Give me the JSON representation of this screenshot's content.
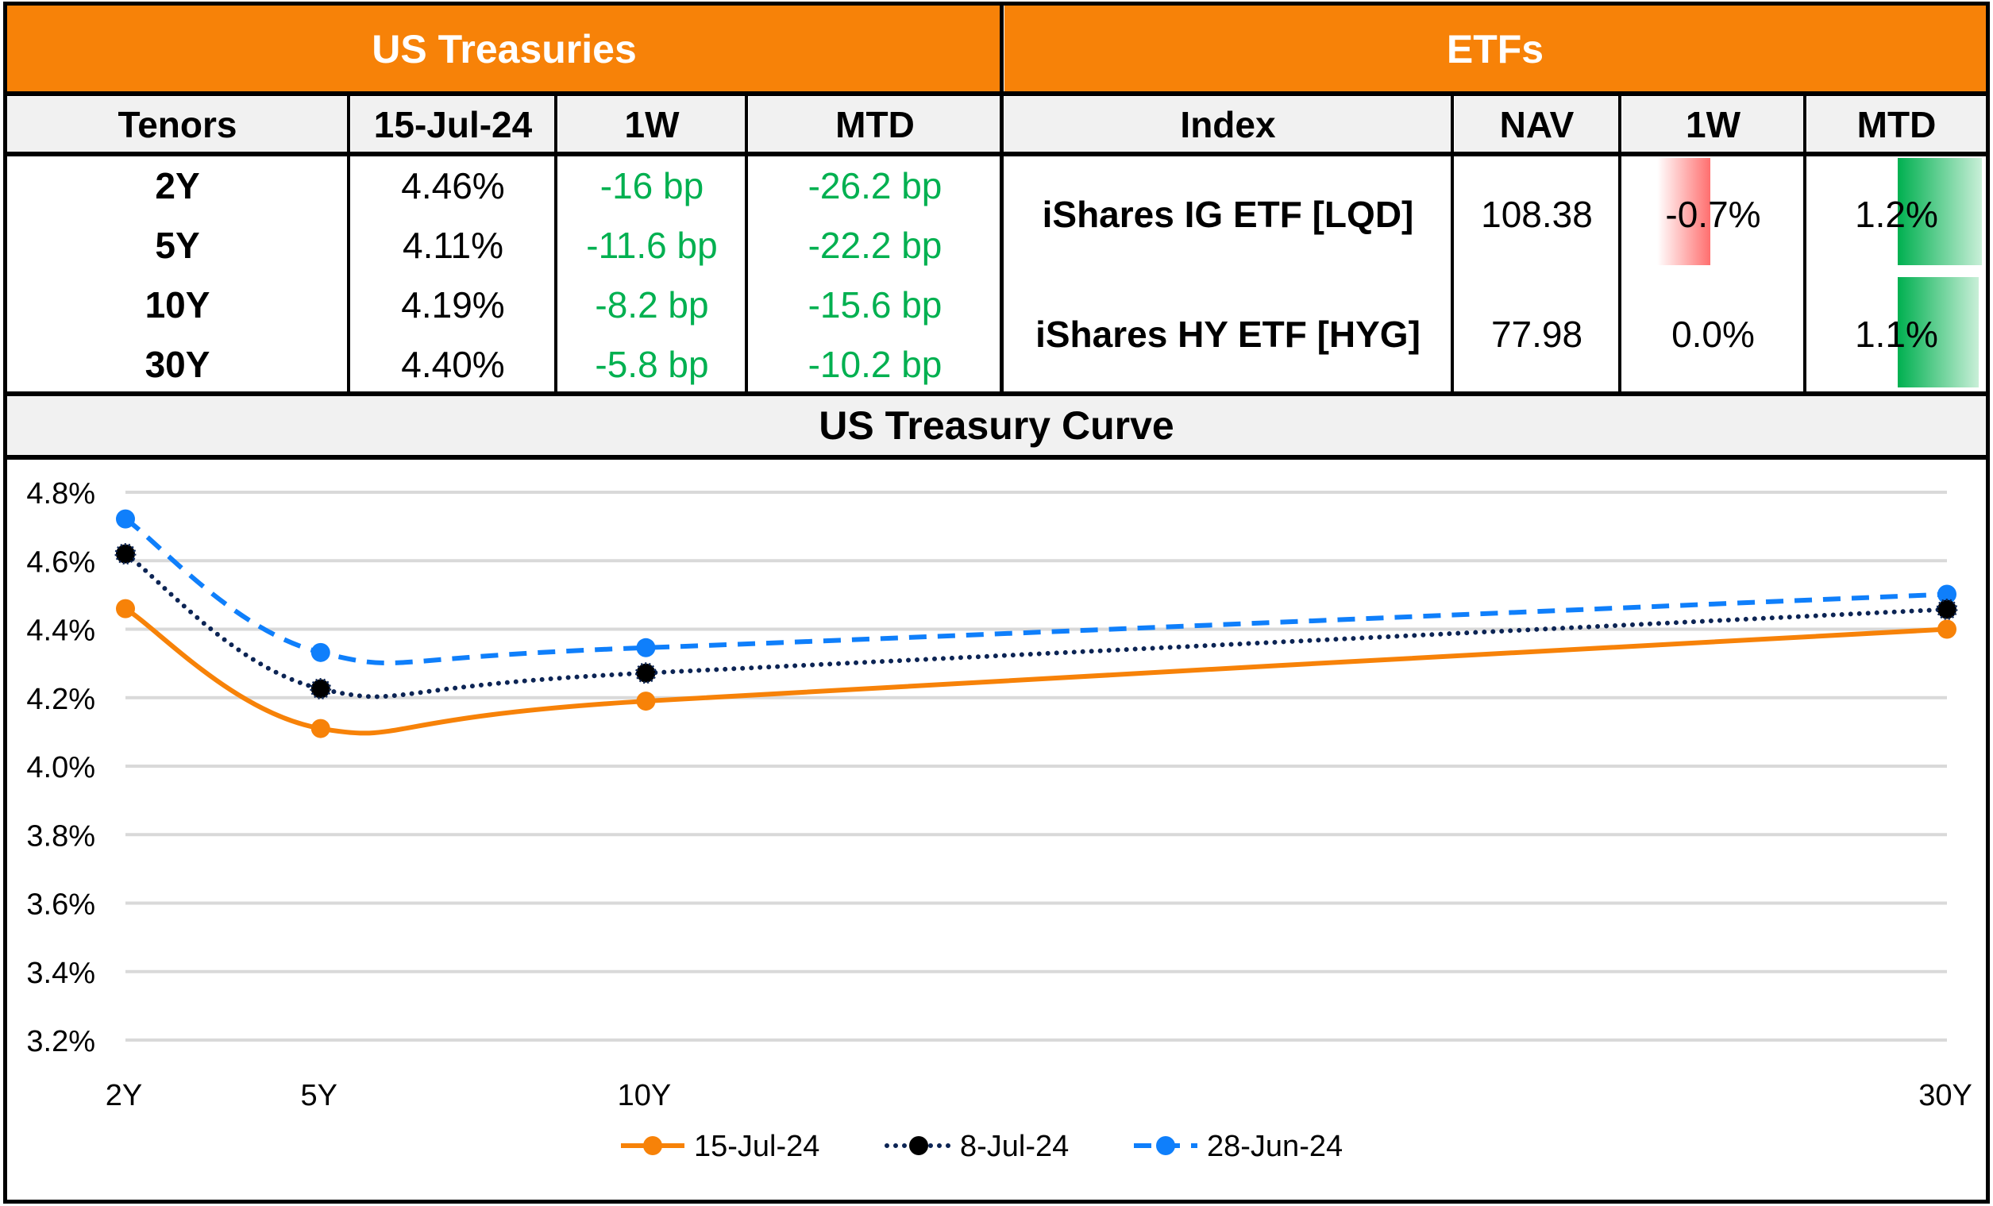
{
  "treasuries": {
    "title": "US Treasuries",
    "headers": [
      "Tenors",
      "15-Jul-24",
      "1W",
      "MTD"
    ],
    "rows": [
      {
        "tenor": "2Y",
        "yield": "4.46%",
        "w1": "-16 bp",
        "mtd": "-26.2 bp"
      },
      {
        "tenor": "5Y",
        "yield": "4.11%",
        "w1": "-11.6 bp",
        "mtd": "-22.2 bp"
      },
      {
        "tenor": "10Y",
        "yield": "4.19%",
        "w1": "-8.2 bp",
        "mtd": "-15.6 bp"
      },
      {
        "tenor": "30Y",
        "yield": "4.40%",
        "w1": "-5.8 bp",
        "mtd": "-10.2 bp"
      }
    ]
  },
  "etfs": {
    "title": "ETFs",
    "headers": [
      "Index",
      "NAV",
      "1W",
      "MTD"
    ],
    "rows": [
      {
        "name": "iShares IG ETF [LQD]",
        "nav": "108.38",
        "w1": "-0.7%",
        "mtd": "1.2%",
        "w1_value": -0.7,
        "mtd_value": 1.2
      },
      {
        "name": "iShares HY ETF [HYG]",
        "nav": "77.98",
        "w1": "0.0%",
        "mtd": "1.1%",
        "w1_value": 0.0,
        "mtd_value": 1.1
      }
    ],
    "colors": {
      "positive_bar": "#00b050",
      "negative_bar": "#ff6f6f"
    }
  },
  "colors": {
    "header_orange": "#f78208",
    "header_grey": "#f1f1f1",
    "change_green": "#00b050"
  },
  "chart_data": {
    "type": "line",
    "title": "US Treasury Curve",
    "xlabel": "",
    "ylabel": "",
    "x": [
      2,
      5,
      10,
      30
    ],
    "x_tick_labels": [
      "2Y",
      "5Y",
      "10Y",
      "30Y"
    ],
    "xlim": [
      2,
      30
    ],
    "ylim": [
      3.2,
      4.8
    ],
    "y_ticks": [
      3.2,
      3.4,
      3.6,
      3.8,
      4.0,
      4.2,
      4.4,
      4.6,
      4.8
    ],
    "y_tick_labels": [
      "3.2%",
      "3.4%",
      "3.6%",
      "3.8%",
      "4.0%",
      "4.2%",
      "4.4%",
      "4.6%",
      "4.8%"
    ],
    "grid": true,
    "legend_position": "bottom",
    "series": [
      {
        "name": "15-Jul-24",
        "values": [
          4.46,
          4.11,
          4.19,
          4.4
        ],
        "color": "#f78208",
        "style": "solid",
        "marker_color": "#f78208"
      },
      {
        "name": "8-Jul-24",
        "values": [
          4.62,
          4.226,
          4.272,
          4.458
        ],
        "color": "#0c2454",
        "style": "dotted",
        "marker_color": "#000000"
      },
      {
        "name": "28-Jun-24",
        "values": [
          4.722,
          4.332,
          4.346,
          4.502
        ],
        "color": "#0f7ffb",
        "style": "dashed",
        "marker_color": "#0f7ffb"
      }
    ]
  }
}
